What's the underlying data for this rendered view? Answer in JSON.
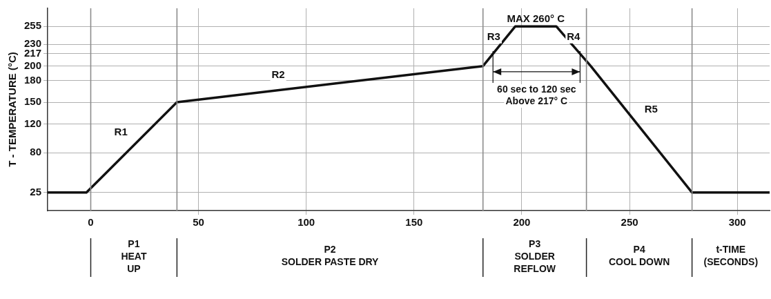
{
  "chart_data": {
    "type": "line",
    "xlabel": "t-TIME\n(SECONDS)",
    "ylabel": "T - TEMPERATURE (°C)",
    "x": [
      -20,
      -2,
      40,
      182,
      197,
      216,
      232,
      279,
      315
    ],
    "series": [
      {
        "color": "#111111",
        "values": [
          25,
          25,
          150,
          200,
          255,
          255,
          200,
          25,
          25
        ]
      }
    ],
    "xlim": [
      -20,
      315
    ],
    "xticks": [
      0,
      50,
      100,
      150,
      200,
      250,
      300
    ],
    "ylim": [
      0,
      280
    ],
    "yticks": [
      25,
      80,
      120,
      150,
      180,
      200,
      217,
      230,
      255
    ],
    "grid": true,
    "legend": false,
    "marker": "none",
    "line_style": "solid",
    "ref_lines": [
      {
        "axis": "x",
        "value": 0,
        "color": "#8c8c8c"
      },
      {
        "axis": "x",
        "value": 40,
        "color": "#8c8c8c"
      },
      {
        "axis": "x",
        "value": 182,
        "color": "#8c8c8c"
      },
      {
        "axis": "x",
        "value": 230,
        "color": "#8c8c8c"
      },
      {
        "axis": "x",
        "value": 279,
        "color": "#8c8c8c"
      }
    ],
    "annotations": [
      {
        "text": "R1",
        "x": 14,
        "y": 108
      },
      {
        "text": "R2",
        "x": 87,
        "y": 187
      },
      {
        "text": "R3",
        "x": 187,
        "y": 240
      },
      {
        "text": "R4",
        "x": 224,
        "y": 240
      },
      {
        "text": "R5",
        "x": 260,
        "y": 140
      },
      "P1\nHEAT\nUP",
      "P2\nSOLDER PASTE DRY",
      "P3\nSOLDER\nREFLOW",
      "P4\nCOOL DOWN",
      "MAX 260° C",
      {
        "text": "60 sec to 120 sec\nAbove 217° C",
        "x": 187,
        "y": 217
      }
    ]
  }
}
